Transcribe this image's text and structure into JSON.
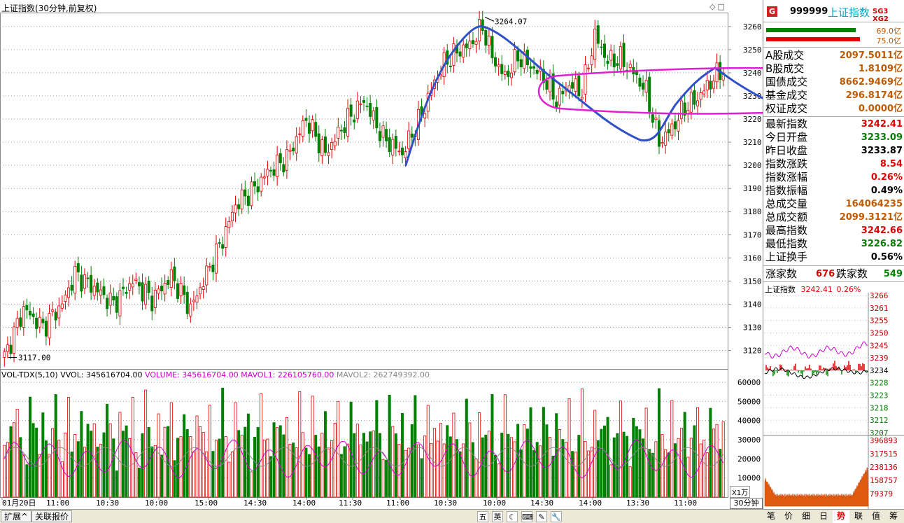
{
  "chart": {
    "title": "上证指数(30分钟,前复权)",
    "price_axis": [
      "3260",
      "3250",
      "3240",
      "3230",
      "3220",
      "3210",
      "3200",
      "3190",
      "3180",
      "3170",
      "3160",
      "3150",
      "3140",
      "3130",
      "3120"
    ],
    "vol_axis": [
      "60000",
      "50000",
      "40000",
      "30000",
      "20000",
      "10000"
    ],
    "x_labels": [
      "01月20日",
      "11:00",
      "10:30",
      "10:00",
      "15:00",
      "14:30",
      "14:00",
      "11:30",
      "11:00",
      "10:30",
      "10:00",
      "14:30",
      "14:00",
      "13:30",
      "11:00"
    ],
    "high_mark": "3264.07",
    "low_mark": "3117.00",
    "vol_legend": {
      "name": "VOL-TDX(5,10)",
      "vvol": "VVOL: 345616704.00",
      "volume": "VOLUME: 345616704.00",
      "mavol1": "MAVOL1: 226105760.00",
      "mavol2": "MAVOL2: 262749392.00"
    },
    "unit_label": "X1万",
    "period_label": "30分钟",
    "colors": {
      "up": "#e00000",
      "down": "#008000",
      "pen_blue": "#3050c8",
      "pen_magenta": "#e020d0",
      "ma1": "#cc00cc",
      "ma2": "#cc00cc"
    }
  },
  "chart_data": {
    "type": "candlestick",
    "ylim": [
      3112,
      3266
    ],
    "open_close_bars": 136
  },
  "tabs": {
    "expand": "扩展^",
    "related": "关联报价",
    "tool_icons": [
      "五",
      "英",
      "☾",
      "⌨",
      "✎",
      "🔧"
    ],
    "right_tabs": [
      "笔",
      "价",
      "细",
      "日",
      "势",
      "联",
      "值",
      "筹"
    ]
  },
  "panel": {
    "g": "G",
    "code": "999999",
    "name": "上证指数",
    "sg": "SG3 XG2",
    "bar1_val": "69.0亿",
    "bar2_val": "75.0亿",
    "turnover": [
      {
        "label": "A股成交",
        "value": "2097.5011亿"
      },
      {
        "label": "B股成交",
        "value": "1.8109亿"
      },
      {
        "label": "国债成交",
        "value": "8662.9469亿"
      },
      {
        "label": "基金成交",
        "value": "296.8174亿"
      },
      {
        "label": "权证成交",
        "value": "0.0000亿"
      }
    ],
    "stats": [
      {
        "label": "最新指数",
        "value": "3242.41",
        "color": "red"
      },
      {
        "label": "今日开盘",
        "value": "3233.09",
        "color": "green"
      },
      {
        "label": "昨日收盘",
        "value": "3233.87",
        "color": "black"
      },
      {
        "label": "指数涨跌",
        "value": "8.54",
        "color": "red"
      },
      {
        "label": "指数涨幅",
        "value": "0.26%",
        "color": "red"
      },
      {
        "label": "指数振幅",
        "value": "0.49%",
        "color": "black"
      },
      {
        "label": "总成交量",
        "value": "164064235",
        "color": "orange"
      },
      {
        "label": "总成交额",
        "value": "2099.3121亿",
        "color": "orange"
      },
      {
        "label": "最高指数",
        "value": "3242.66",
        "color": "red"
      },
      {
        "label": "最低指数",
        "value": "3226.82",
        "color": "green"
      },
      {
        "label": "上证换手",
        "value": "0.56%",
        "color": "black"
      }
    ],
    "rise_label": "涨家数",
    "rise_value": "676",
    "fall_label": "跌家数",
    "fall_value": "549",
    "mini_title": "上证指数",
    "mini_price": "3242.41",
    "mini_pct": "0.26%",
    "mini_axis": [
      "3266",
      "3261",
      "3255",
      "3250",
      "3245",
      "3239",
      "3234",
      "3228",
      "3223",
      "3218",
      "3212",
      "3207"
    ],
    "mini_vol_axis": [
      "396893",
      "317515",
      "238136",
      "158757",
      "79379"
    ]
  }
}
